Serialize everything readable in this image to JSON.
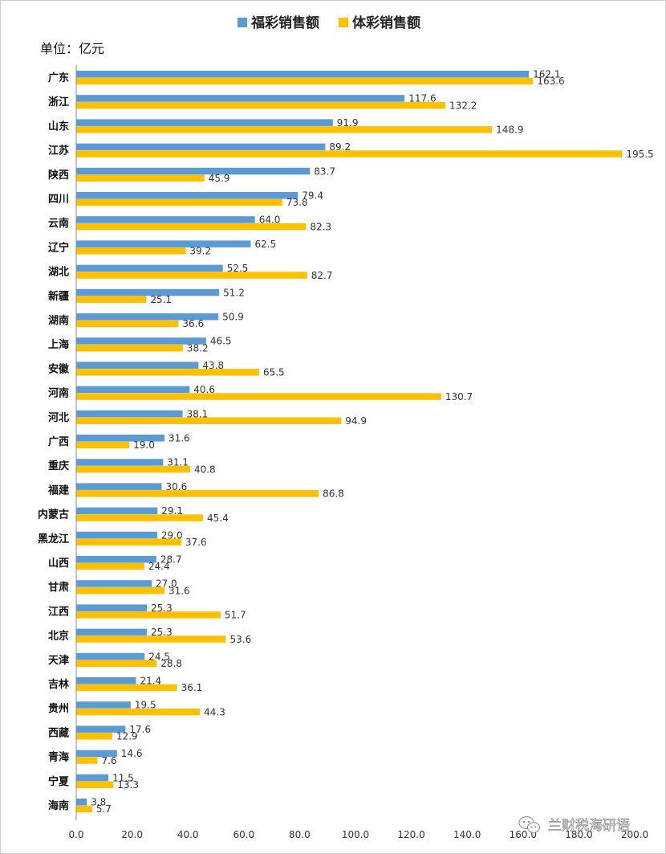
{
  "chart_data": {
    "type": "bar",
    "orientation": "horizontal",
    "unit_label": "单位：亿元",
    "categories": [
      "广东",
      "浙江",
      "山东",
      "江苏",
      "陕西",
      "四川",
      "云南",
      "辽宁",
      "湖北",
      "新疆",
      "湖南",
      "上海",
      "安徽",
      "河南",
      "河北",
      "广西",
      "重庆",
      "福建",
      "内蒙古",
      "黑龙江",
      "山西",
      "甘肃",
      "江西",
      "北京",
      "天津",
      "吉林",
      "贵州",
      "西藏",
      "青海",
      "宁夏",
      "海南"
    ],
    "series": [
      {
        "name": "福彩销售额",
        "color": "#5b9bd5",
        "values": [
          162.1,
          117.6,
          91.9,
          89.2,
          83.7,
          79.4,
          64.0,
          62.5,
          52.5,
          51.2,
          50.9,
          46.5,
          43.8,
          40.6,
          38.1,
          31.6,
          31.1,
          30.6,
          29.1,
          29.0,
          28.7,
          27.0,
          25.3,
          25.3,
          24.5,
          21.4,
          19.5,
          17.6,
          14.6,
          11.5,
          3.8
        ]
      },
      {
        "name": "体彩销售额",
        "color": "#ffc000",
        "values": [
          163.6,
          132.2,
          148.9,
          195.5,
          45.9,
          73.8,
          82.3,
          39.2,
          82.7,
          25.1,
          36.6,
          38.2,
          65.5,
          130.7,
          94.9,
          19.0,
          40.8,
          86.8,
          45.4,
          37.6,
          24.4,
          31.6,
          51.7,
          53.6,
          28.8,
          36.1,
          44.3,
          12.9,
          7.6,
          13.3,
          5.7
        ]
      }
    ],
    "x_ticks": [
      "0.0",
      "20.0",
      "40.0",
      "60.0",
      "80.0",
      "100.0",
      "120.0",
      "140.0",
      "160.0",
      "180.0",
      "200.0"
    ],
    "xlim": [
      0,
      200
    ],
    "grid": false,
    "legend_position": "top-center"
  },
  "watermark": {
    "text": "兰财税海研语",
    "icon": "wechat-icon"
  }
}
